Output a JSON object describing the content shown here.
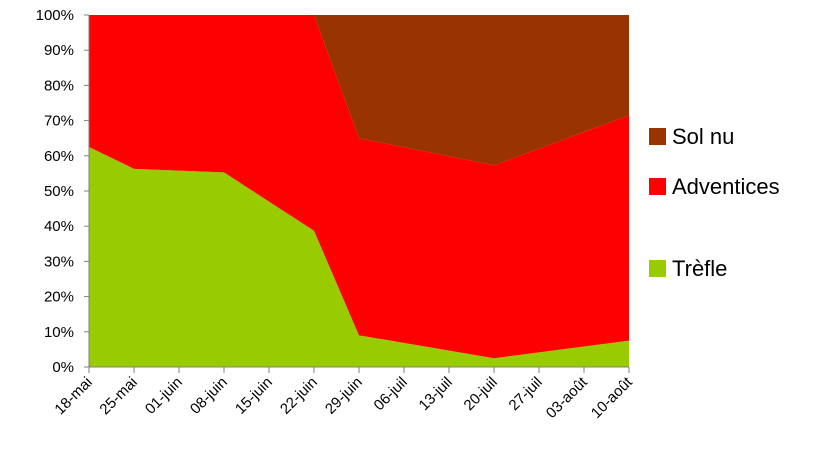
{
  "chart_data": {
    "type": "area",
    "stacked": "percent",
    "x": [
      "18-mai",
      "25-mai",
      "01-juin",
      "08-juin",
      "15-juin",
      "22-juin",
      "29-juin",
      "06-juil",
      "13-juil",
      "20-juil",
      "27-juil",
      "03-août",
      "10-août"
    ],
    "ylim": [
      0,
      100
    ],
    "yticks": [
      "0%",
      "10%",
      "20%",
      "30%",
      "40%",
      "50%",
      "60%",
      "70%",
      "80%",
      "90%",
      "100%"
    ],
    "grid": false,
    "legend_position": "right",
    "series": [
      {
        "name": "Trèfle",
        "color": "#99cc00",
        "points": [
          {
            "x": 0,
            "y": 62.5
          },
          {
            "x": 1,
            "y": 56.3
          },
          {
            "x": 3,
            "y": 55.3
          },
          {
            "x": 5,
            "y": 38.7
          },
          {
            "x": 6,
            "y": 9
          },
          {
            "x": 9,
            "y": 2.5
          },
          {
            "x": 12,
            "y": 7.5
          }
        ]
      },
      {
        "name": "Adventices",
        "color": "#ff0000",
        "points": [
          {
            "x": 0,
            "y": 37.5
          },
          {
            "x": 1,
            "y": 43.7
          },
          {
            "x": 3,
            "y": 44.7
          },
          {
            "x": 5,
            "y": 61.3
          },
          {
            "x": 6,
            "y": 56
          },
          {
            "x": 9,
            "y": 54.8
          },
          {
            "x": 12,
            "y": 64
          }
        ]
      },
      {
        "name": "Sol nu",
        "color": "#993300",
        "points": [
          {
            "x": 0,
            "y": 0
          },
          {
            "x": 1,
            "y": 0
          },
          {
            "x": 3,
            "y": 0
          },
          {
            "x": 5,
            "y": 0
          },
          {
            "x": 6,
            "y": 35
          },
          {
            "x": 9,
            "y": 42.7
          },
          {
            "x": 12,
            "y": 28.5
          }
        ]
      }
    ]
  }
}
